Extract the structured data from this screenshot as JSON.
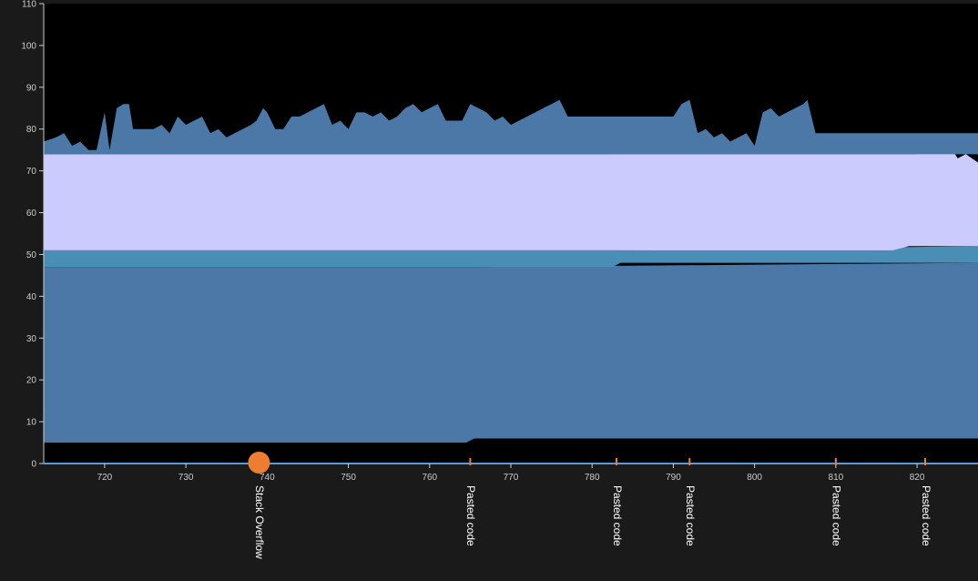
{
  "chart_data": {
    "type": "area",
    "title": "",
    "xlabel": "",
    "ylabel": "",
    "xlim": [
      712.5,
      827.5
    ],
    "ylim": [
      0,
      110
    ],
    "x_ticks": [
      720,
      730,
      740,
      750,
      760,
      770,
      780,
      790,
      800,
      810,
      820
    ],
    "y_ticks": [
      0,
      10,
      20,
      30,
      40,
      50,
      60,
      70,
      80,
      90,
      100,
      110
    ],
    "grid": false,
    "legend": "none",
    "colors": {
      "background": "#1a1a1a",
      "plot_background": "#000000",
      "top_band": "#4b78a6",
      "teal_band": "#4a8db5",
      "lavender_band": "#cccbfd",
      "lower_band": "#4b78a6",
      "axis": "#5b9bd5",
      "event": "#ed7d31",
      "text": "#cccccc"
    },
    "series": [
      {
        "key": "lower",
        "x": [
          712.5,
          764.5,
          765.5,
          827.5
        ],
        "low": [
          5,
          5,
          6,
          6
        ],
        "high": [
          47,
          47,
          47,
          48
        ]
      },
      {
        "key": "teal",
        "x": [
          712.5,
          782.5,
          783.5,
          827.5
        ],
        "low": [
          47,
          47,
          48,
          48
        ],
        "high": [
          51,
          51,
          51,
          52
        ]
      },
      {
        "key": "lavender",
        "x": [
          712.5,
          815,
          817,
          819,
          820,
          822,
          824,
          825,
          826,
          827.5
        ],
        "low": [
          51,
          51,
          51,
          52,
          52,
          52,
          52,
          52,
          52,
          52
        ],
        "high": [
          74,
          74,
          74,
          74,
          74,
          75,
          76,
          73,
          74,
          72
        ]
      },
      {
        "key": "teal_upper",
        "x": [
          712.5,
          782.5,
          783.5,
          785,
          786,
          787,
          790,
          810,
          811,
          812,
          813,
          816,
          818,
          820,
          822,
          827.5
        ],
        "low": [
          74,
          74,
          74,
          74,
          74,
          74,
          74,
          74,
          74,
          74,
          74,
          74,
          74,
          74,
          74,
          74
        ],
        "high": [
          74,
          74,
          76,
          76,
          77,
          76,
          75,
          75,
          77,
          78,
          76,
          76,
          77,
          76,
          76,
          76
        ]
      },
      {
        "key": "top",
        "x": [
          712.5,
          714,
          715,
          716,
          717,
          718,
          719,
          720,
          720.6,
          721.5,
          722.3,
          723,
          723.5,
          725,
          726,
          727,
          728,
          729,
          730,
          731,
          732,
          733,
          734,
          735,
          736,
          737,
          738,
          738.7,
          739.5,
          740,
          741,
          742,
          743,
          744,
          745,
          746,
          747,
          748,
          749,
          750,
          751,
          752,
          753,
          754,
          755,
          756,
          757,
          758,
          759,
          760,
          761,
          762,
          763,
          764,
          765,
          766,
          767,
          768,
          769,
          770,
          771,
          772,
          773,
          774,
          775,
          776,
          777,
          780,
          785,
          790,
          791,
          792,
          793,
          794,
          795,
          796,
          797,
          798,
          799,
          800,
          801,
          802,
          803,
          804,
          805,
          806,
          806.5,
          807.5,
          808,
          827.5
        ],
        "low": [
          74,
          74,
          74,
          74,
          74,
          74,
          74,
          74,
          74,
          74,
          74,
          74,
          74,
          74,
          74,
          74,
          74,
          74,
          74,
          74,
          74,
          74,
          74,
          74,
          74,
          74,
          74,
          74,
          74,
          74,
          74,
          74,
          74,
          74,
          74,
          74,
          74,
          74,
          74,
          74,
          74,
          74,
          74,
          74,
          74,
          74,
          74,
          74,
          74,
          74,
          74,
          74,
          74,
          74,
          74,
          74,
          74,
          74,
          74,
          74,
          74,
          74,
          74,
          74,
          74,
          74,
          74,
          74,
          74,
          74,
          74,
          74,
          74,
          74,
          74,
          74,
          74,
          74,
          74,
          74,
          74,
          74,
          74,
          74,
          74,
          74,
          74,
          74,
          74,
          74
        ],
        "high": [
          77,
          78,
          79,
          76,
          77,
          75,
          75,
          84,
          75,
          85,
          86,
          86,
          80,
          80,
          80,
          81,
          79,
          83,
          81,
          82,
          83,
          79,
          80,
          78,
          79,
          80,
          81,
          82,
          85,
          84,
          80,
          80,
          83,
          83,
          84,
          85,
          86,
          81,
          82,
          80,
          84,
          84,
          83,
          84,
          82,
          83,
          85,
          86,
          84,
          85,
          86,
          82,
          82,
          82,
          86,
          85,
          84,
          82,
          83,
          81,
          82,
          83,
          84,
          85,
          86,
          87,
          83,
          83,
          83,
          83,
          86,
          87,
          79,
          80,
          78,
          79,
          77,
          78,
          79,
          76,
          84,
          85,
          83,
          84,
          85,
          86,
          87,
          79,
          79,
          79
        ]
      }
    ],
    "events": [
      {
        "x": 739,
        "label": "Stack Overflow",
        "marker": "circle"
      },
      {
        "x": 765,
        "label": "Pasted code",
        "marker": "tick"
      },
      {
        "x": 783,
        "label": "Pasted code",
        "marker": "tick"
      },
      {
        "x": 792,
        "label": "Pasted code",
        "marker": "tick"
      },
      {
        "x": 810,
        "label": "Pasted code",
        "marker": "tick"
      },
      {
        "x": 821,
        "label": "Pasted code",
        "marker": "tick"
      }
    ]
  }
}
